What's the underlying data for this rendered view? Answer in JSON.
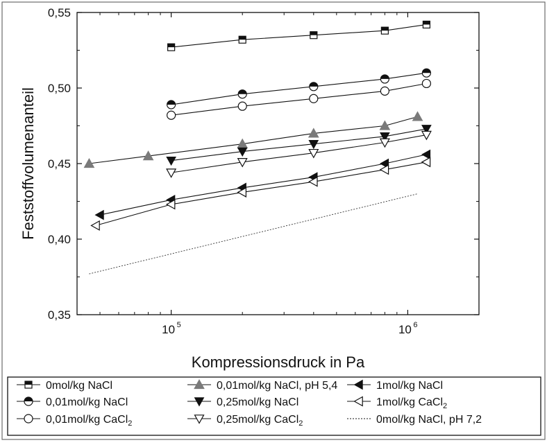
{
  "chart_data": {
    "type": "scatter",
    "xlabel": "Kompressionsdruck in Pa",
    "ylabel": "Feststoffvolumenanteil",
    "xscale": "log",
    "xlim": [
      40000,
      2000000
    ],
    "ylim": [
      0.35,
      0.55
    ],
    "x_tick_labels": [
      {
        "base": "10",
        "exp": "5",
        "value": 100000
      },
      {
        "base": "10",
        "exp": "6",
        "value": 1000000
      }
    ],
    "y_ticks": [
      {
        "label": "0,35",
        "value": 0.35
      },
      {
        "label": "0,40",
        "value": 0.4
      },
      {
        "label": "0,45",
        "value": 0.45
      },
      {
        "label": "0,50",
        "value": 0.5
      },
      {
        "label": "0,55",
        "value": 0.55
      }
    ],
    "grid": false,
    "legend_position": "bottom",
    "series": [
      {
        "name": "0mol/kg NaCl",
        "marker": "square-tophalf",
        "x": [
          100000,
          200000,
          400000,
          800000,
          1200000
        ],
        "y": [
          0.527,
          0.532,
          0.535,
          0.538,
          0.542
        ]
      },
      {
        "name": "0,01mol/kg NaCl",
        "marker": "circle-tophalf",
        "x": [
          100000,
          200000,
          400000,
          800000,
          1200000
        ],
        "y": [
          0.489,
          0.496,
          0.501,
          0.506,
          0.51
        ]
      },
      {
        "name": "0,01mol/kg CaCl",
        "sub": "2",
        "marker": "circle-open",
        "x": [
          100000,
          200000,
          400000,
          800000,
          1200000
        ],
        "y": [
          0.482,
          0.488,
          0.493,
          0.498,
          0.503
        ]
      },
      {
        "name": "0,01mol/kg NaCl, pH 5,4",
        "marker": "triangle-up-filled",
        "x": [
          45000,
          80000,
          200000,
          400000,
          800000,
          1100000
        ],
        "y": [
          0.45,
          0.455,
          0.463,
          0.47,
          0.475,
          0.481
        ]
      },
      {
        "name": "0,25mol/kg NaCl",
        "marker": "triangle-down-filled",
        "x": [
          100000,
          200000,
          400000,
          800000,
          1200000
        ],
        "y": [
          0.452,
          0.458,
          0.463,
          0.468,
          0.473
        ]
      },
      {
        "name": "0,25mol/kg CaCl",
        "sub": "2",
        "marker": "triangle-down-open",
        "x": [
          100000,
          200000,
          400000,
          800000,
          1200000
        ],
        "y": [
          0.444,
          0.451,
          0.457,
          0.464,
          0.469
        ]
      },
      {
        "name": "1mol/kg NaCl",
        "marker": "triangle-left-filled",
        "x": [
          50000,
          100000,
          200000,
          400000,
          800000,
          1200000
        ],
        "y": [
          0.416,
          0.426,
          0.434,
          0.441,
          0.45,
          0.456
        ]
      },
      {
        "name": "1mol/kg CaCl",
        "sub": "2",
        "marker": "triangle-left-open",
        "x": [
          48000,
          100000,
          200000,
          400000,
          800000,
          1200000
        ],
        "y": [
          0.409,
          0.423,
          0.431,
          0.438,
          0.446,
          0.451
        ]
      },
      {
        "name": "0mol/kg NaCl, pH 7,2",
        "marker": "none",
        "dashed": true,
        "x": [
          45000,
          1100000
        ],
        "y": [
          0.377,
          0.43
        ]
      }
    ]
  }
}
